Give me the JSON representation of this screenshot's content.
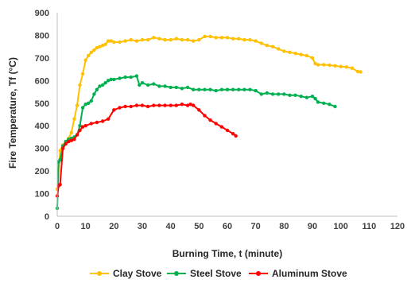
{
  "chart_data": {
    "type": "line",
    "xlabel": "Burning Time, t (minute)",
    "ylabel": "Fire Temperature, Tf (°C)",
    "xlim": [
      0,
      120
    ],
    "ylim": [
      0,
      900
    ],
    "xticks": [
      0,
      10,
      20,
      30,
      40,
      50,
      60,
      70,
      80,
      90,
      100,
      110,
      120
    ],
    "yticks": [
      0,
      100,
      200,
      300,
      400,
      500,
      600,
      700,
      800,
      900
    ],
    "grid": false,
    "legend_position": "bottom",
    "series": [
      {
        "name": "Clay Stove",
        "color": "#FFC000",
        "x": [
          0,
          1,
          2,
          3,
          4,
          5,
          6,
          7,
          8,
          9,
          10,
          11,
          12,
          13,
          14,
          15,
          16,
          17,
          18,
          19,
          20,
          22,
          24,
          26,
          28,
          30,
          32,
          34,
          36,
          38,
          40,
          42,
          44,
          46,
          48,
          50,
          52,
          54,
          56,
          58,
          60,
          62,
          64,
          66,
          68,
          70,
          72,
          74,
          76,
          78,
          80,
          82,
          84,
          86,
          88,
          90,
          91,
          92,
          94,
          96,
          98,
          100,
          102,
          104,
          106,
          107
        ],
        "y": [
          120,
          290,
          315,
          330,
          345,
          370,
          430,
          490,
          580,
          630,
          690,
          710,
          725,
          735,
          745,
          750,
          755,
          760,
          775,
          775,
          770,
          770,
          775,
          780,
          775,
          780,
          780,
          790,
          785,
          780,
          780,
          785,
          780,
          780,
          775,
          780,
          795,
          795,
          790,
          790,
          790,
          785,
          785,
          780,
          780,
          775,
          765,
          755,
          750,
          740,
          730,
          725,
          720,
          715,
          710,
          700,
          675,
          670,
          670,
          668,
          665,
          662,
          660,
          655,
          640,
          638
        ]
      },
      {
        "name": "Steel Stove",
        "color": "#00B050",
        "x": [
          0,
          0.5,
          1,
          2,
          3,
          4,
          5,
          6,
          7,
          8,
          9,
          10,
          11,
          12,
          13,
          14,
          15,
          16,
          17,
          18,
          19,
          20,
          22,
          24,
          26,
          28,
          29,
          30,
          32,
          34,
          36,
          38,
          40,
          42,
          44,
          46,
          48,
          50,
          52,
          54,
          56,
          58,
          60,
          62,
          64,
          66,
          68,
          70,
          72,
          74,
          76,
          78,
          80,
          82,
          84,
          86,
          88,
          90,
          91,
          92,
          94,
          96,
          98
        ],
        "y": [
          35,
          240,
          250,
          310,
          330,
          340,
          345,
          350,
          360,
          400,
          480,
          495,
          500,
          510,
          540,
          560,
          575,
          580,
          590,
          600,
          605,
          605,
          610,
          615,
          615,
          620,
          580,
          590,
          580,
          585,
          575,
          575,
          570,
          570,
          565,
          570,
          560,
          560,
          560,
          560,
          555,
          560,
          560,
          560,
          560,
          560,
          560,
          555,
          540,
          545,
          540,
          540,
          540,
          535,
          535,
          530,
          525,
          530,
          520,
          505,
          500,
          495,
          485
        ]
      },
      {
        "name": "Aluminum Stove",
        "color": "#FF0000",
        "x": [
          0,
          0.5,
          1,
          2,
          3,
          4,
          5,
          6,
          7,
          8,
          9,
          10,
          12,
          14,
          16,
          18,
          20,
          22,
          24,
          26,
          28,
          30,
          32,
          34,
          36,
          38,
          40,
          42,
          44,
          46,
          47,
          48,
          50,
          52,
          54,
          56,
          58,
          60,
          62,
          63
        ],
        "y": [
          90,
          135,
          140,
          300,
          320,
          330,
          335,
          340,
          360,
          380,
          395,
          400,
          410,
          415,
          420,
          430,
          470,
          480,
          485,
          485,
          490,
          490,
          485,
          490,
          490,
          490,
          490,
          490,
          495,
          490,
          495,
          490,
          470,
          445,
          425,
          410,
          395,
          380,
          365,
          355
        ]
      }
    ]
  }
}
